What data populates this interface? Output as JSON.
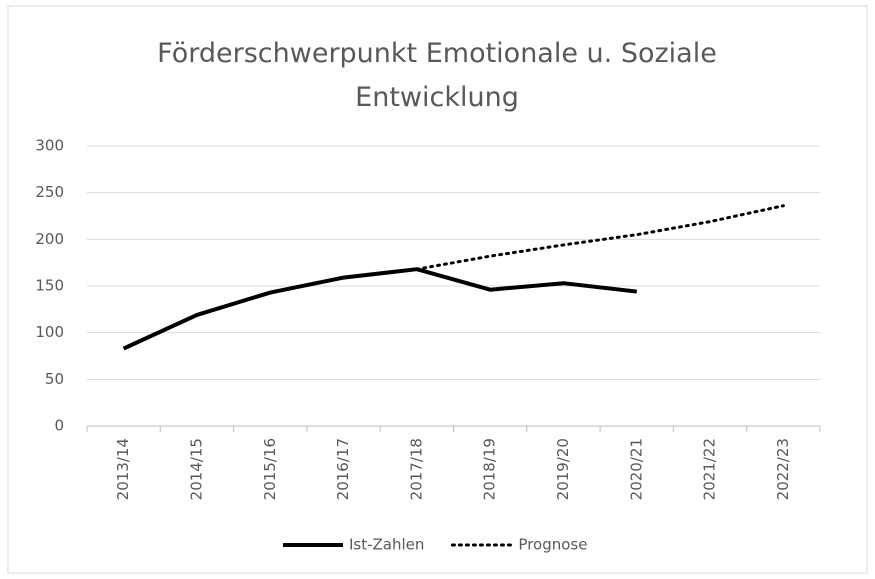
{
  "chart_data": {
    "type": "line",
    "title": "Förderschwerpunkt Emotionale u. Soziale Entwicklung",
    "categories": [
      "2013/14",
      "2014/15",
      "2015/16",
      "2016/17",
      "2017/18",
      "2018/19",
      "2019/20",
      "2020/21",
      "2021/22",
      "2022/23"
    ],
    "series": [
      {
        "name": "Ist-Zahlen",
        "color": "#000000",
        "style": "solid",
        "values": [
          83,
          119,
          143,
          159,
          168,
          146,
          153,
          144,
          null,
          null
        ]
      },
      {
        "name": "Prognose",
        "color": "#000000",
        "style": "dotted",
        "values": [
          null,
          null,
          null,
          null,
          168,
          182,
          194,
          205,
          219,
          236
        ]
      }
    ],
    "ylim": [
      0,
      300
    ],
    "yticks": [
      0,
      50,
      100,
      150,
      200,
      250,
      300
    ],
    "grid": true,
    "legend": "bottom"
  }
}
